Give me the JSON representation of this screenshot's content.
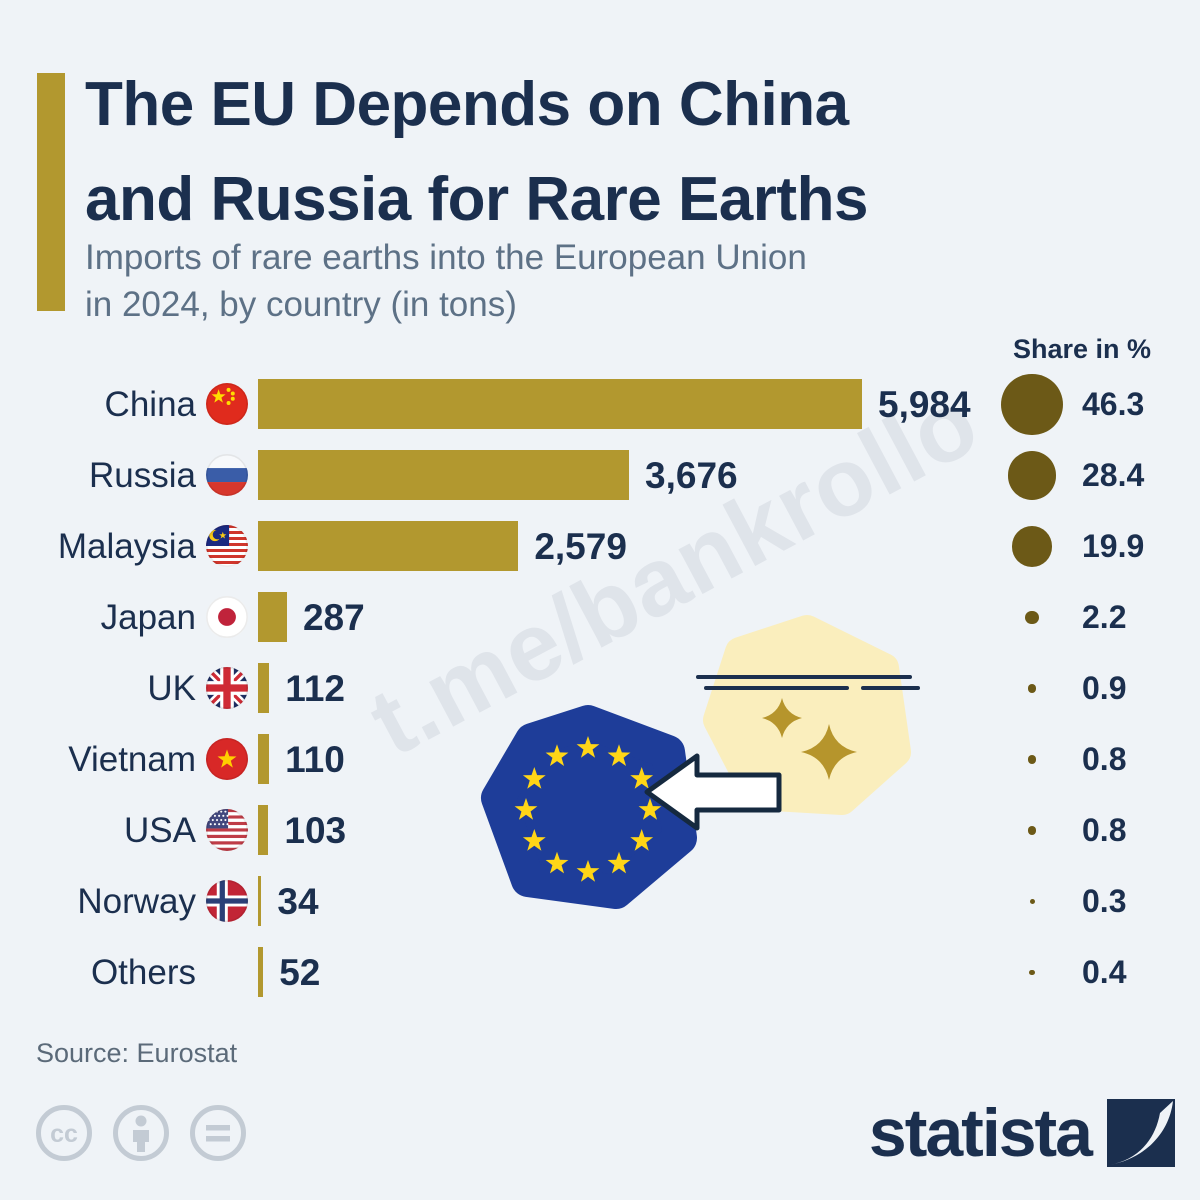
{
  "header": {
    "title_line1": "The EU Depends on China",
    "title_line2": "and Russia for Rare Earths",
    "subtitle_line1": "Imports of rare earths into the European Union",
    "subtitle_line2": "in 2024, by country (in tons)"
  },
  "chart_data": {
    "type": "bar",
    "title": "The EU Depends on China and Russia for Rare Earths",
    "subtitle": "Imports of rare earths into the European Union in 2024, by country (in tons)",
    "orientation": "horizontal",
    "unit": "tons",
    "xlim": [
      0,
      5984
    ],
    "share_column_header": "Share in %",
    "categories": [
      "China",
      "Russia",
      "Malaysia",
      "Japan",
      "UK",
      "Vietnam",
      "USA",
      "Norway",
      "Others"
    ],
    "values": [
      5984,
      3676,
      2579,
      287,
      112,
      110,
      103,
      34,
      52
    ],
    "value_labels": [
      "5,984",
      "3,676",
      "2,579",
      "287",
      "112",
      "110",
      "103",
      "34",
      "52"
    ],
    "shares": [
      46.3,
      28.4,
      19.9,
      2.2,
      0.9,
      0.8,
      0.8,
      0.3,
      0.4
    ],
    "share_labels": [
      "46.3",
      "28.4",
      "19.9",
      "2.2",
      "0.9",
      "0.8",
      "0.8",
      "0.3",
      "0.4"
    ],
    "flags": [
      "cn",
      "ru",
      "my",
      "jp",
      "gb",
      "vn",
      "us",
      "no",
      null
    ],
    "bar_color": "#b2982f",
    "dot_color": "#6c5917",
    "grid": false,
    "legend": false
  },
  "watermark": "t.me/bankrollo",
  "footer": {
    "source": "Source: Eurostat",
    "brand": "statista"
  },
  "colors": {
    "background": "#eff3f7",
    "title_navy": "#1b2f4e",
    "subtitle_gray": "#5d7186",
    "bar_gold": "#b2982f",
    "share_dot_olive": "#6c5917",
    "eu_blue": "#1e3d99",
    "star_yellow": "#ffd617",
    "pale_yellow_hex": "#faeebd",
    "sparkle_gold": "#b6952c",
    "license_gray": "#c3cbd4"
  }
}
